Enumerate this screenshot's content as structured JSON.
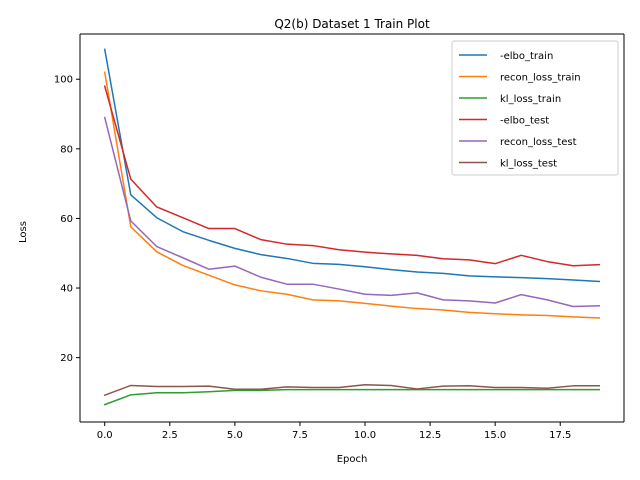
{
  "chart_data": {
    "type": "line",
    "title": "Q2(b) Dataset 1 Train Plot",
    "xlabel": "Epoch",
    "ylabel": "Loss",
    "xlim": [
      -0.95,
      19.95
    ],
    "ylim": [
      1.5,
      113.0
    ],
    "xticks": [
      0.0,
      2.5,
      5.0,
      7.5,
      10.0,
      12.5,
      15.0,
      17.5
    ],
    "xtick_labels": [
      "0.0",
      "2.5",
      "5.0",
      "7.5",
      "10.0",
      "12.5",
      "15.0",
      "17.5"
    ],
    "yticks": [
      20,
      40,
      60,
      80,
      100
    ],
    "ytick_labels": [
      "20",
      "40",
      "60",
      "80",
      "100"
    ],
    "grid": false,
    "legend_position": "top-right",
    "x": [
      0,
      1,
      2,
      3,
      4,
      5,
      6,
      7,
      8,
      9,
      10,
      11,
      12,
      13,
      14,
      15,
      16,
      17,
      18,
      19
    ],
    "series": [
      {
        "name": "-elbo_train",
        "color": "#1f77b4",
        "values": [
          108.6,
          66.8,
          60.2,
          56.2,
          53.7,
          51.4,
          49.6,
          48.5,
          47.1,
          46.8,
          46.1,
          45.3,
          44.6,
          44.2,
          43.5,
          43.2,
          43.0,
          42.7,
          42.3,
          41.9
        ]
      },
      {
        "name": "recon_loss_train",
        "color": "#ff7f0e",
        "values": [
          102.0,
          57.6,
          50.4,
          46.5,
          43.7,
          40.9,
          39.2,
          38.2,
          36.6,
          36.3,
          35.6,
          34.8,
          34.1,
          33.7,
          33.0,
          32.6,
          32.3,
          32.1,
          31.7,
          31.4
        ]
      },
      {
        "name": "kl_loss_train",
        "color": "#2ca02c",
        "values": [
          6.5,
          9.3,
          9.9,
          9.9,
          10.2,
          10.6,
          10.6,
          10.8,
          10.8,
          10.8,
          10.8,
          10.8,
          10.8,
          10.8,
          10.8,
          10.8,
          10.8,
          10.8,
          10.8,
          10.8
        ]
      },
      {
        "name": "-elbo_test",
        "color": "#d62728",
        "values": [
          98.0,
          71.3,
          63.3,
          60.2,
          57.1,
          57.1,
          53.9,
          52.6,
          52.2,
          51.0,
          50.3,
          49.8,
          49.4,
          48.4,
          48.1,
          47.0,
          49.4,
          47.6,
          46.4,
          46.7
        ]
      },
      {
        "name": "recon_loss_test",
        "color": "#9467bd",
        "values": [
          89.0,
          59.3,
          51.9,
          48.7,
          45.4,
          46.3,
          43.1,
          41.1,
          41.1,
          39.7,
          38.2,
          37.9,
          38.6,
          36.6,
          36.3,
          35.7,
          38.1,
          36.6,
          34.7,
          34.9
        ]
      },
      {
        "name": "kl_loss_test",
        "color": "#8c564b",
        "values": [
          9.2,
          12.0,
          11.7,
          11.7,
          11.8,
          10.9,
          10.9,
          11.6,
          11.4,
          11.4,
          12.2,
          12.0,
          11.0,
          11.8,
          11.9,
          11.4,
          11.4,
          11.2,
          11.9,
          11.9
        ]
      }
    ]
  }
}
